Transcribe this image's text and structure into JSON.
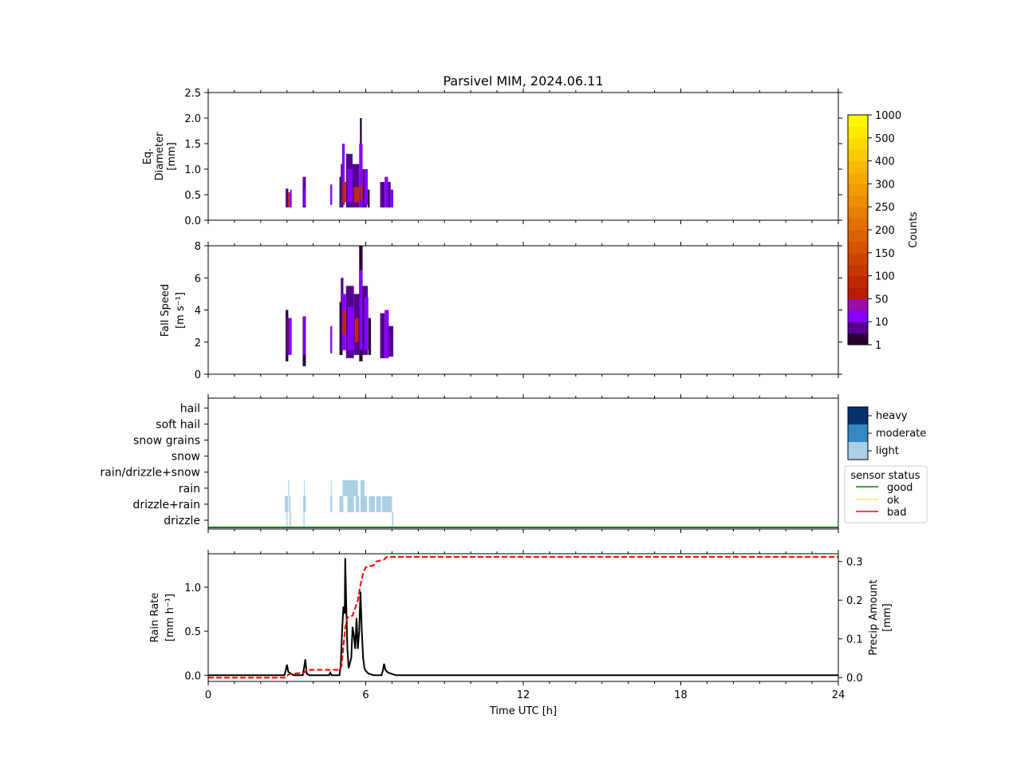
{
  "figure": {
    "title": "Parsivel MIM, 2024.06.11"
  },
  "chart_data": [
    {
      "id": "diameter",
      "type": "heatmap",
      "ylabel_lines": [
        "Eq.",
        "Diameter",
        "[mm]"
      ],
      "xlim": [
        0,
        24
      ],
      "ylim": [
        0,
        2.5
      ],
      "yticks": [
        0.0,
        0.5,
        1.0,
        1.5,
        2.0,
        2.5
      ],
      "ytick_labels": [
        "0.0",
        "0.5",
        "1.0",
        "1.5",
        "2.0",
        "2.5"
      ],
      "cells": [
        {
          "t0": 2.95,
          "t1": 3.05,
          "y0": 0.25,
          "y1": 0.62,
          "c": "purple"
        },
        {
          "t0": 3.05,
          "t1": 3.12,
          "y0": 0.25,
          "y1": 0.55,
          "c": "red"
        },
        {
          "t0": 3.12,
          "t1": 3.18,
          "y0": 0.25,
          "y1": 0.6,
          "c": "violet"
        },
        {
          "t0": 3.6,
          "t1": 3.72,
          "y0": 0.25,
          "y1": 0.85,
          "c": "purple"
        },
        {
          "t0": 3.64,
          "t1": 3.7,
          "y0": 0.3,
          "y1": 0.62,
          "c": "violet"
        },
        {
          "t0": 4.65,
          "t1": 4.72,
          "y0": 0.3,
          "y1": 0.7,
          "c": "violet"
        },
        {
          "t0": 5.0,
          "t1": 5.05,
          "y0": 0.25,
          "y1": 0.85,
          "c": "dark"
        },
        {
          "t0": 5.05,
          "t1": 5.15,
          "y0": 0.25,
          "y1": 1.1,
          "c": "purple"
        },
        {
          "t0": 5.1,
          "t1": 5.2,
          "y0": 0.3,
          "y1": 1.5,
          "c": "violet"
        },
        {
          "t0": 5.12,
          "t1": 5.25,
          "y0": 0.35,
          "y1": 0.75,
          "c": "red"
        },
        {
          "t0": 5.25,
          "t1": 5.5,
          "y0": 0.25,
          "y1": 1.3,
          "c": "purple"
        },
        {
          "t0": 5.3,
          "t1": 5.55,
          "y0": 0.35,
          "y1": 1.0,
          "c": "violet"
        },
        {
          "t0": 5.5,
          "t1": 5.75,
          "y0": 0.25,
          "y1": 1.1,
          "c": "purple"
        },
        {
          "t0": 5.55,
          "t1": 5.75,
          "y0": 0.35,
          "y1": 0.65,
          "c": "red"
        },
        {
          "t0": 5.75,
          "t1": 5.88,
          "y0": 0.25,
          "y1": 1.5,
          "c": "violet"
        },
        {
          "t0": 5.78,
          "t1": 5.85,
          "y0": 1.5,
          "y1": 2.0,
          "c": "dark"
        },
        {
          "t0": 5.8,
          "t1": 5.88,
          "y0": 0.4,
          "y1": 0.7,
          "c": "red"
        },
        {
          "t0": 5.88,
          "t1": 6.05,
          "y0": 0.25,
          "y1": 1.0,
          "c": "purple"
        },
        {
          "t0": 5.95,
          "t1": 6.08,
          "y0": 0.3,
          "y1": 1.0,
          "c": "violet"
        },
        {
          "t0": 6.08,
          "t1": 6.15,
          "y0": 0.25,
          "y1": 0.6,
          "c": "dark"
        },
        {
          "t0": 6.55,
          "t1": 6.72,
          "y0": 0.25,
          "y1": 0.75,
          "c": "purple"
        },
        {
          "t0": 6.72,
          "t1": 6.85,
          "y0": 0.25,
          "y1": 0.85,
          "c": "violet"
        },
        {
          "t0": 6.85,
          "t1": 6.95,
          "y0": 0.25,
          "y1": 0.75,
          "c": "purple"
        },
        {
          "t0": 6.95,
          "t1": 7.05,
          "y0": 0.25,
          "y1": 0.6,
          "c": "violet"
        }
      ]
    },
    {
      "id": "fallspeed",
      "type": "heatmap",
      "ylabel_lines": [
        "Fall Speed",
        "[m s⁻¹]"
      ],
      "xlim": [
        0,
        24
      ],
      "ylim": [
        0,
        8
      ],
      "yticks": [
        0,
        2,
        4,
        6,
        8
      ],
      "ytick_labels": [
        "0",
        "2",
        "4",
        "6",
        "8"
      ],
      "cells": [
        {
          "t0": 2.95,
          "t1": 3.05,
          "y0": 0.8,
          "y1": 4.0,
          "c": "dark"
        },
        {
          "t0": 2.98,
          "t1": 3.08,
          "y0": 1.2,
          "y1": 3.5,
          "c": "purple"
        },
        {
          "t0": 3.08,
          "t1": 3.18,
          "y0": 1.2,
          "y1": 3.5,
          "c": "violet"
        },
        {
          "t0": 3.6,
          "t1": 3.72,
          "y0": 0.5,
          "y1": 3.6,
          "c": "dark"
        },
        {
          "t0": 3.62,
          "t1": 3.7,
          "y0": 1.2,
          "y1": 3.6,
          "c": "violet"
        },
        {
          "t0": 4.65,
          "t1": 4.72,
          "y0": 1.3,
          "y1": 3.0,
          "c": "violet"
        },
        {
          "t0": 5.0,
          "t1": 5.12,
          "y0": 1.2,
          "y1": 4.5,
          "c": "dark"
        },
        {
          "t0": 5.05,
          "t1": 5.15,
          "y0": 1.5,
          "y1": 6.0,
          "c": "purple"
        },
        {
          "t0": 5.1,
          "t1": 5.25,
          "y0": 1.5,
          "y1": 5.0,
          "c": "violet"
        },
        {
          "t0": 5.12,
          "t1": 5.25,
          "y0": 2.5,
          "y1": 4.0,
          "c": "red"
        },
        {
          "t0": 5.25,
          "t1": 5.55,
          "y0": 1.0,
          "y1": 5.5,
          "c": "purple"
        },
        {
          "t0": 5.3,
          "t1": 5.55,
          "y0": 1.5,
          "y1": 4.2,
          "c": "violet"
        },
        {
          "t0": 5.55,
          "t1": 5.75,
          "y0": 1.2,
          "y1": 5.0,
          "c": "purple"
        },
        {
          "t0": 5.58,
          "t1": 5.72,
          "y0": 2.0,
          "y1": 3.5,
          "c": "red"
        },
        {
          "t0": 5.75,
          "t1": 5.88,
          "y0": 0.8,
          "y1": 8.0,
          "c": "dark"
        },
        {
          "t0": 5.77,
          "t1": 5.87,
          "y0": 1.5,
          "y1": 6.5,
          "c": "violet"
        },
        {
          "t0": 5.88,
          "t1": 6.08,
          "y0": 1.2,
          "y1": 5.5,
          "c": "purple"
        },
        {
          "t0": 5.95,
          "t1": 6.1,
          "y0": 1.5,
          "y1": 4.8,
          "c": "violet"
        },
        {
          "t0": 6.1,
          "t1": 6.2,
          "y0": 1.2,
          "y1": 3.5,
          "c": "dark"
        },
        {
          "t0": 6.55,
          "t1": 6.72,
          "y0": 1.0,
          "y1": 3.8,
          "c": "purple"
        },
        {
          "t0": 6.72,
          "t1": 6.88,
          "y0": 1.0,
          "y1": 4.0,
          "c": "violet"
        },
        {
          "t0": 6.88,
          "t1": 7.05,
          "y0": 1.1,
          "y1": 3.0,
          "c": "purple"
        }
      ]
    },
    {
      "id": "weather",
      "type": "heatmap",
      "categories": [
        "drizzle",
        "drizzle+rain",
        "rain",
        "rain/drizzle+snow",
        "snow",
        "snow grains",
        "soft hail",
        "hail"
      ],
      "xlim": [
        0,
        24
      ],
      "blocks": [
        {
          "t0": 2.92,
          "t1": 3.05,
          "cat": "drizzle+rain"
        },
        {
          "t0": 3.08,
          "t1": 3.13,
          "cat": "drizzle+rain"
        },
        {
          "t0": 3.05,
          "t1": 3.09,
          "cat": "rain"
        },
        {
          "t0": 2.98,
          "t1": 3.02,
          "cat": "drizzle"
        },
        {
          "t0": 3.1,
          "t1": 3.15,
          "cat": "drizzle"
        },
        {
          "t0": 3.62,
          "t1": 3.72,
          "cat": "drizzle+rain"
        },
        {
          "t0": 3.65,
          "t1": 3.68,
          "cat": "rain"
        },
        {
          "t0": 3.63,
          "t1": 3.67,
          "cat": "drizzle"
        },
        {
          "t0": 4.65,
          "t1": 4.72,
          "cat": "drizzle+rain"
        },
        {
          "t0": 4.67,
          "t1": 4.7,
          "cat": "rain"
        },
        {
          "t0": 5.0,
          "t1": 5.15,
          "cat": "drizzle+rain"
        },
        {
          "t0": 5.12,
          "t1": 5.7,
          "cat": "rain"
        },
        {
          "t0": 5.3,
          "t1": 5.55,
          "cat": "drizzle+rain"
        },
        {
          "t0": 5.62,
          "t1": 5.75,
          "cat": "drizzle+rain"
        },
        {
          "t0": 5.8,
          "t1": 5.95,
          "cat": "rain"
        },
        {
          "t0": 5.8,
          "t1": 6.05,
          "cat": "drizzle+rain"
        },
        {
          "t0": 6.12,
          "t1": 6.35,
          "cat": "drizzle+rain"
        },
        {
          "t0": 6.4,
          "t1": 6.58,
          "cat": "drizzle+rain"
        },
        {
          "t0": 6.62,
          "t1": 7.0,
          "cat": "drizzle+rain"
        },
        {
          "t0": 7.0,
          "t1": 7.05,
          "cat": "drizzle"
        }
      ],
      "intensity_legend": [
        "heavy",
        "moderate",
        "light"
      ],
      "intensity_colors": {
        "heavy": "#08306b",
        "moderate": "#3787c0",
        "light": "#abd0e6"
      },
      "status_legend": {
        "title": "sensor status",
        "items": [
          {
            "label": "good",
            "color": "#008000"
          },
          {
            "label": "ok",
            "color": "#ffff00"
          },
          {
            "label": "bad",
            "color": "#ff0000"
          }
        ]
      },
      "status_line": {
        "t0": 0,
        "t1": 24,
        "status": "good"
      }
    },
    {
      "id": "rain",
      "type": "line",
      "ylabel_lines": [
        "Rain Rate",
        "[mm h⁻¹]"
      ],
      "y2label_lines": [
        "Precip Amount",
        "[mm]"
      ],
      "xlabel": "Time UTC [h]",
      "xlim": [
        0,
        24
      ],
      "xticks": [
        0,
        6,
        12,
        18,
        24
      ],
      "xtick_labels": [
        "0",
        "6",
        "12",
        "18",
        "24"
      ],
      "ylim": [
        -0.07,
        1.38
      ],
      "yticks": [
        0.0,
        0.5,
        1.0
      ],
      "ytick_labels": [
        "0.0",
        "0.5",
        "1.0"
      ],
      "y2lim": [
        -0.01,
        0.32
      ],
      "y2ticks": [
        0.0,
        0.1,
        0.2,
        0.3
      ],
      "y2tick_labels": [
        "0.0",
        "0.1",
        "0.2",
        "0.3"
      ],
      "series": [
        {
          "axis": "left",
          "color": "#000000",
          "points": [
            [
              0,
              0
            ],
            [
              2.9,
              0
            ],
            [
              2.95,
              0.05
            ],
            [
              3.0,
              0.12
            ],
            [
              3.05,
              0.04
            ],
            [
              3.15,
              0.02
            ],
            [
              3.25,
              0
            ],
            [
              3.6,
              0
            ],
            [
              3.65,
              0.08
            ],
            [
              3.7,
              0.18
            ],
            [
              3.75,
              0.02
            ],
            [
              3.85,
              0
            ],
            [
              4.6,
              0
            ],
            [
              4.65,
              0.03
            ],
            [
              4.7,
              0
            ],
            [
              5.0,
              0
            ],
            [
              5.05,
              0.12
            ],
            [
              5.1,
              0.5
            ],
            [
              5.15,
              0.78
            ],
            [
              5.2,
              0.7
            ],
            [
              5.22,
              1.33
            ],
            [
              5.25,
              0.9
            ],
            [
              5.3,
              0.3
            ],
            [
              5.35,
              0.08
            ],
            [
              5.45,
              0.2
            ],
            [
              5.5,
              0.55
            ],
            [
              5.55,
              0.45
            ],
            [
              5.6,
              0.3
            ],
            [
              5.65,
              0.65
            ],
            [
              5.7,
              0.3
            ],
            [
              5.75,
              0.5
            ],
            [
              5.8,
              0.95
            ],
            [
              5.85,
              0.5
            ],
            [
              5.9,
              0.2
            ],
            [
              5.95,
              0.08
            ],
            [
              6.0,
              0.05
            ],
            [
              6.1,
              0.02
            ],
            [
              6.3,
              0
            ],
            [
              6.6,
              0
            ],
            [
              6.65,
              0.05
            ],
            [
              6.7,
              0.13
            ],
            [
              6.75,
              0.06
            ],
            [
              6.85,
              0.03
            ],
            [
              6.95,
              0.02
            ],
            [
              7.05,
              0.01
            ],
            [
              7.15,
              0
            ],
            [
              24,
              0
            ]
          ]
        },
        {
          "axis": "right",
          "color": "#ff0000",
          "dashed": true,
          "points": [
            [
              0,
              0
            ],
            [
              2.95,
              0
            ],
            [
              3.05,
              0.008
            ],
            [
              3.2,
              0.01
            ],
            [
              3.65,
              0.012
            ],
            [
              3.75,
              0.02
            ],
            [
              5.0,
              0.02
            ],
            [
              5.08,
              0.03
            ],
            [
              5.15,
              0.08
            ],
            [
              5.22,
              0.13
            ],
            [
              5.3,
              0.155
            ],
            [
              5.5,
              0.16
            ],
            [
              5.6,
              0.18
            ],
            [
              5.7,
              0.2
            ],
            [
              5.8,
              0.24
            ],
            [
              5.9,
              0.27
            ],
            [
              6.0,
              0.285
            ],
            [
              6.3,
              0.29
            ],
            [
              6.4,
              0.3
            ],
            [
              6.7,
              0.305
            ],
            [
              6.8,
              0.312
            ],
            [
              24,
              0.312
            ]
          ]
        }
      ]
    }
  ],
  "colorbar": {
    "label": "Counts",
    "tick_labels": [
      "1",
      "10",
      "50",
      "100",
      "150",
      "200",
      "250",
      "300",
      "400",
      "500",
      "1000"
    ],
    "colors": [
      "#2a0034",
      "#560090",
      "#8500ff",
      "#9c0ca6",
      "#b81c00",
      "#c02800",
      "#c83600",
      "#cf4400",
      "#d65200",
      "#dc6200",
      "#e27000",
      "#e67e00",
      "#eb8d00",
      "#ef9c00",
      "#f2aa00",
      "#f6b900",
      "#f9c900",
      "#fcda00",
      "#ffea00",
      "#fff700"
    ],
    "value_colors": {
      "dark": "#2a0034",
      "purple": "#560090",
      "violet": "#8500ff",
      "red": "#c02800"
    }
  }
}
